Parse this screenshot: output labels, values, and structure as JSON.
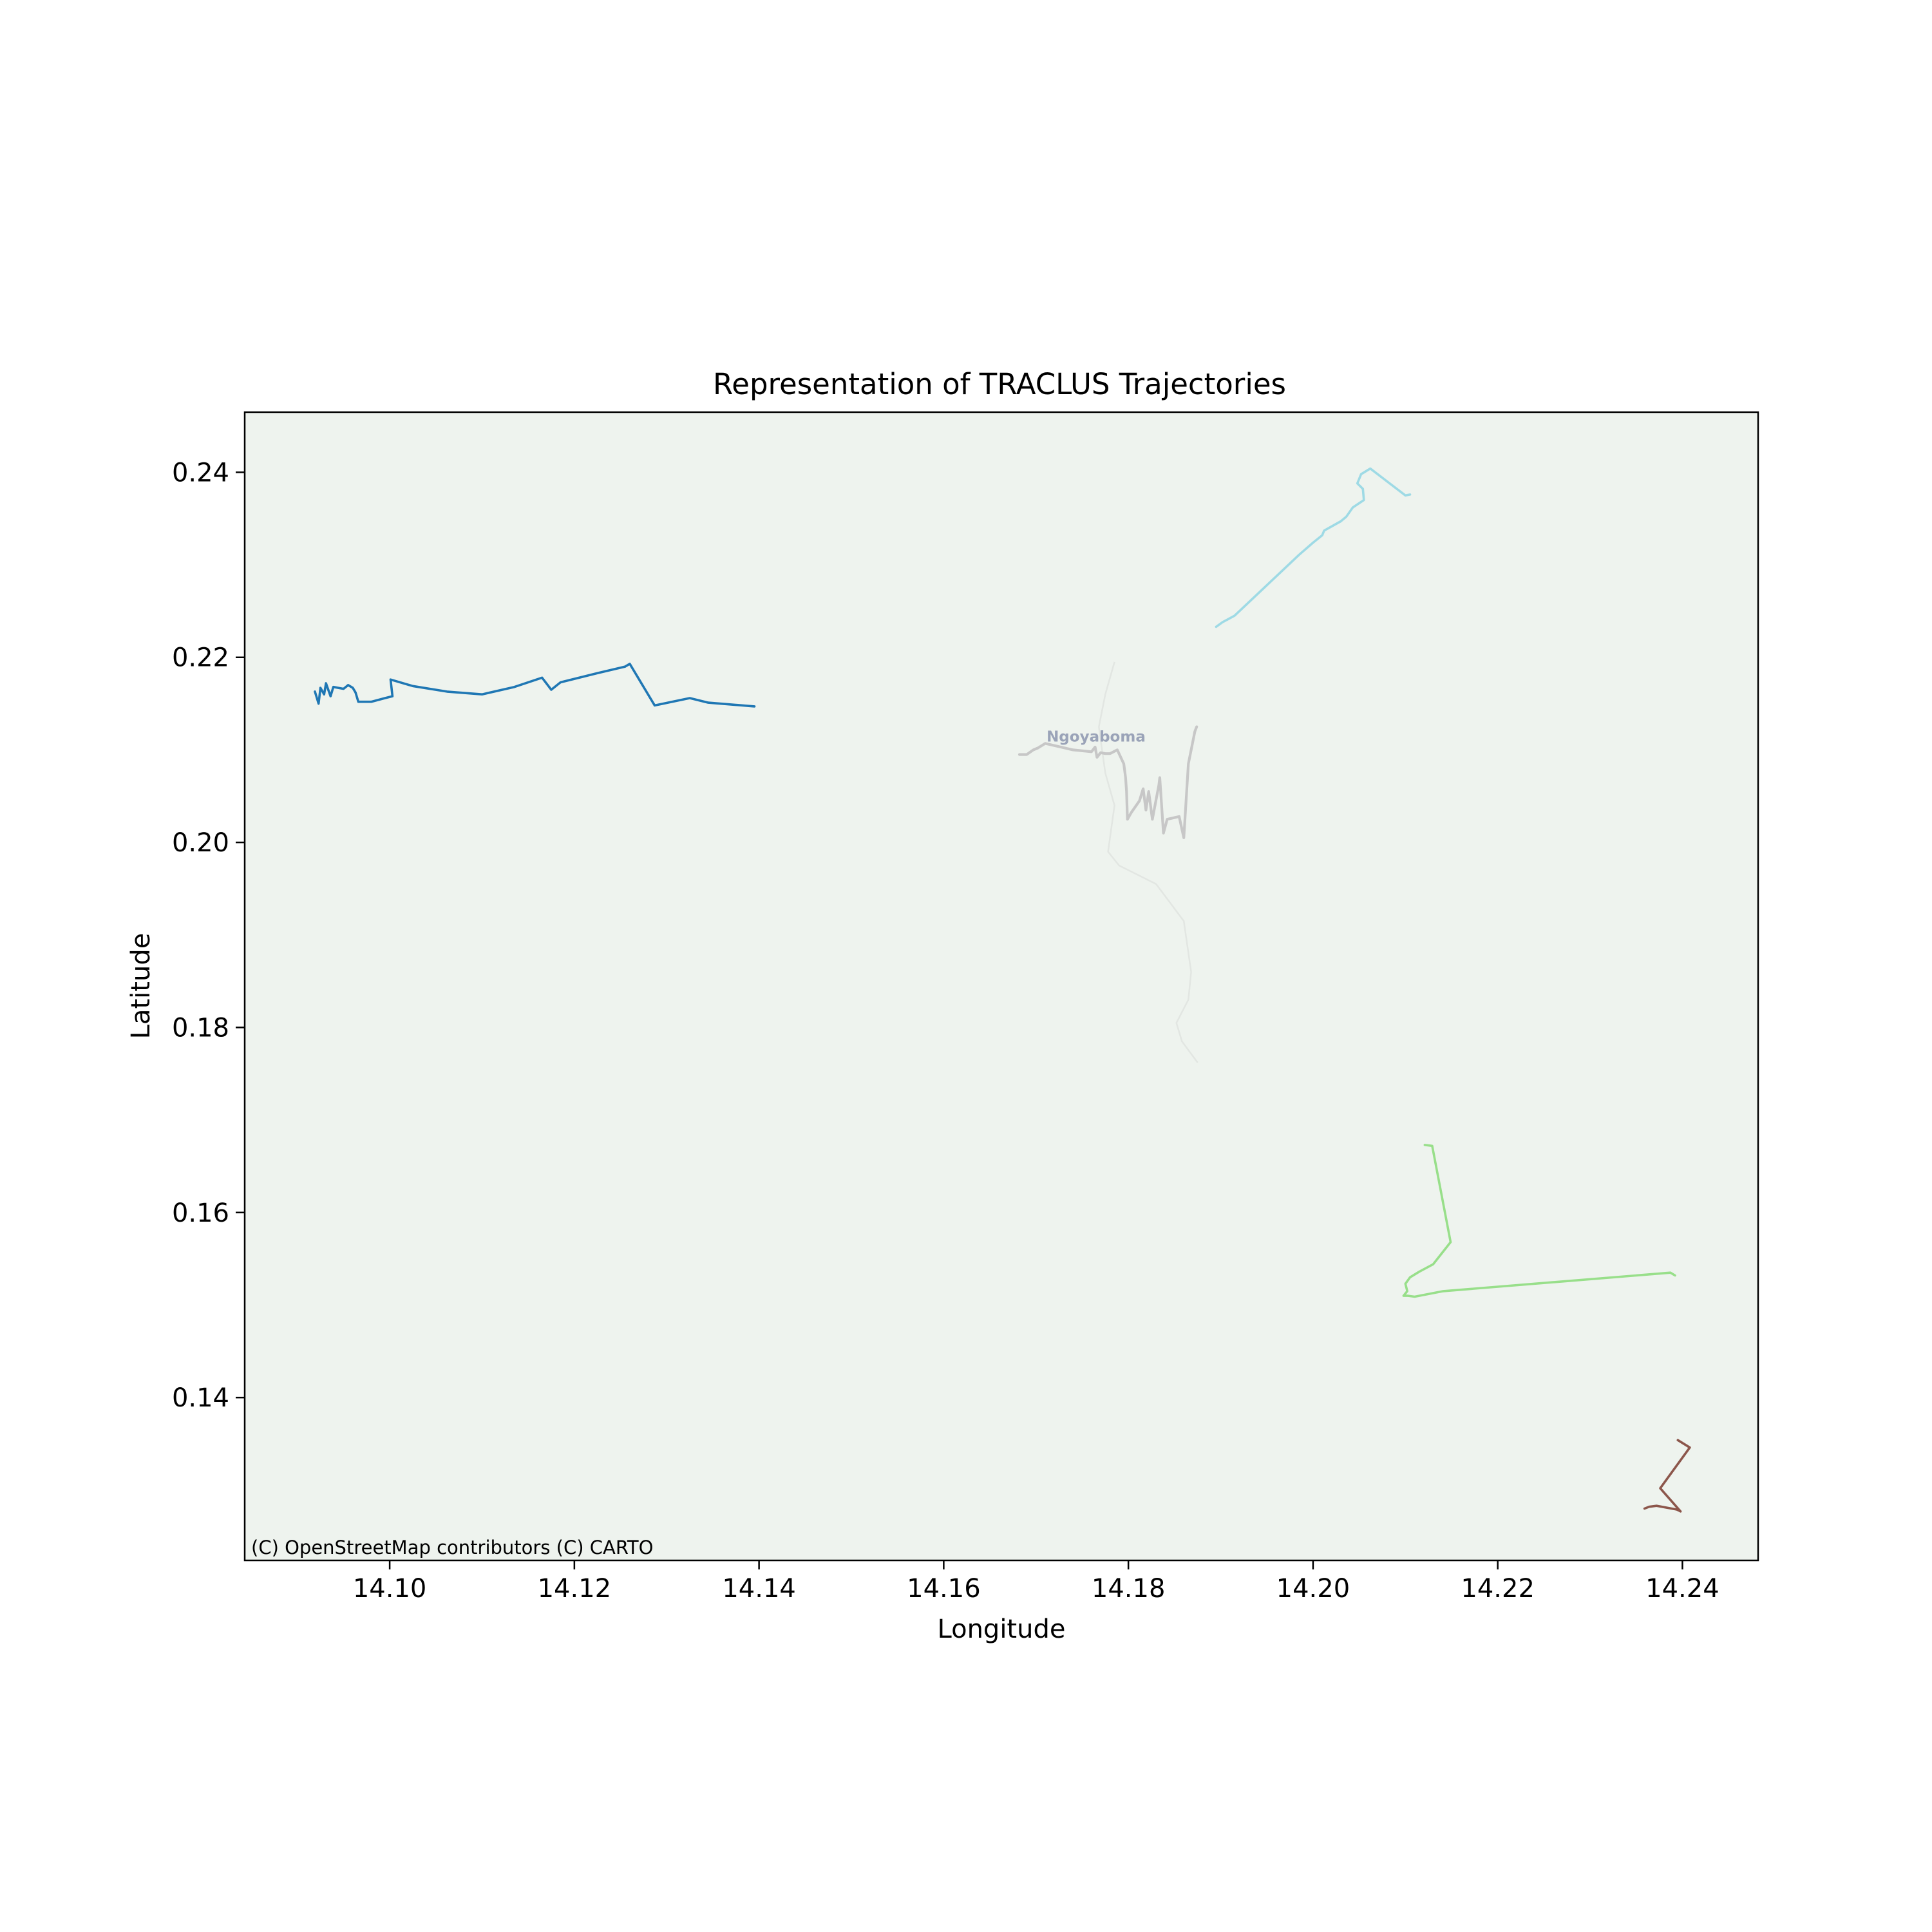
{
  "chart_data": {
    "type": "line",
    "title": "Representation of TRACLUS Trajectories",
    "xlabel": "Longitude",
    "ylabel": "Latitude",
    "xlim": [
      14.0843,
      14.2482
    ],
    "ylim": [
      0.1224,
      0.2465
    ],
    "xticks": [
      14.1,
      14.12,
      14.14,
      14.16,
      14.18,
      14.2,
      14.22,
      14.24
    ],
    "yticks": [
      0.14,
      0.16,
      0.18,
      0.2,
      0.22,
      0.24
    ],
    "grid": false,
    "legend": "none",
    "background": "#eef3ee",
    "basemap": {
      "attribution": "(C) OpenStreetMap contributors (C) CARTO",
      "place_label": {
        "text": "Ngoyaboma",
        "x": 14.1765,
        "y": 0.2109,
        "color": "#9aa3b8"
      },
      "road": {
        "color": "#e2e6e2",
        "points": [
          [
            14.1785,
            0.2195
          ],
          [
            14.1775,
            0.216
          ],
          [
            14.1768,
            0.2125
          ],
          [
            14.1775,
            0.2075
          ],
          [
            14.1785,
            0.204
          ],
          [
            14.1778,
            0.199
          ],
          [
            14.179,
            0.1975
          ],
          [
            14.183,
            0.1955
          ],
          [
            14.186,
            0.1915
          ],
          [
            14.1868,
            0.186
          ],
          [
            14.1865,
            0.183
          ],
          [
            14.1852,
            0.1805
          ],
          [
            14.1858,
            0.1785
          ],
          [
            14.1875,
            0.1762
          ]
        ]
      }
    },
    "series": [
      {
        "color": "#1f77b4",
        "points": [
          [
            14.0919,
            0.2163
          ],
          [
            14.0923,
            0.215
          ],
          [
            14.0925,
            0.2167
          ],
          [
            14.0929,
            0.216
          ],
          [
            14.0931,
            0.2172
          ],
          [
            14.0936,
            0.2158
          ],
          [
            14.0939,
            0.2168
          ],
          [
            14.095,
            0.2166
          ],
          [
            14.0955,
            0.217
          ],
          [
            14.096,
            0.2167
          ],
          [
            14.0963,
            0.2162
          ],
          [
            14.0966,
            0.2152
          ],
          [
            14.098,
            0.2152
          ],
          [
            14.0995,
            0.2156
          ],
          [
            14.1003,
            0.2158
          ],
          [
            14.1001,
            0.2176
          ],
          [
            14.1025,
            0.2169
          ],
          [
            14.1062,
            0.2163
          ],
          [
            14.11,
            0.216
          ],
          [
            14.1135,
            0.2168
          ],
          [
            14.1165,
            0.2178
          ],
          [
            14.1175,
            0.2165
          ],
          [
            14.1185,
            0.2173
          ],
          [
            14.1225,
            0.2183
          ],
          [
            14.1255,
            0.219
          ],
          [
            14.126,
            0.2193
          ],
          [
            14.1287,
            0.2148
          ],
          [
            14.1325,
            0.2156
          ],
          [
            14.1345,
            0.2151
          ],
          [
            14.1395,
            0.2147
          ]
        ],
        "width": 3.6
      },
      {
        "color": "#9edae5",
        "points": [
          [
            14.1895,
            0.2233
          ],
          [
            14.1902,
            0.2238
          ],
          [
            14.1915,
            0.2245
          ],
          [
            14.1985,
            0.2311
          ],
          [
            14.2,
            0.2324
          ],
          [
            14.201,
            0.2332
          ],
          [
            14.2012,
            0.2337
          ],
          [
            14.203,
            0.2347
          ],
          [
            14.2036,
            0.2352
          ],
          [
            14.2043,
            0.2362
          ],
          [
            14.2055,
            0.237
          ],
          [
            14.2054,
            0.2382
          ],
          [
            14.2048,
            0.2388
          ],
          [
            14.2052,
            0.2398
          ],
          [
            14.2062,
            0.2404
          ],
          [
            14.21,
            0.2375
          ],
          [
            14.2105,
            0.2376
          ]
        ],
        "width": 3.6
      },
      {
        "color": "#c7c7c7",
        "points": [
          [
            14.1682,
            0.2095
          ],
          [
            14.169,
            0.2095
          ],
          [
            14.1697,
            0.21
          ],
          [
            14.1702,
            0.2102
          ],
          [
            14.171,
            0.2107
          ],
          [
            14.174,
            0.21
          ],
          [
            14.176,
            0.2098
          ],
          [
            14.1764,
            0.2103
          ],
          [
            14.1766,
            0.2092
          ],
          [
            14.177,
            0.2097
          ],
          [
            14.1775,
            0.2096
          ],
          [
            14.178,
            0.2096
          ],
          [
            14.1788,
            0.21
          ],
          [
            14.1795,
            0.2085
          ],
          [
            14.1797,
            0.207
          ],
          [
            14.1798,
            0.2055
          ],
          [
            14.1799,
            0.2025
          ],
          [
            14.1803,
            0.2032
          ],
          [
            14.1812,
            0.2045
          ],
          [
            14.1816,
            0.2058
          ],
          [
            14.1819,
            0.2035
          ],
          [
            14.1822,
            0.2055
          ],
          [
            14.1826,
            0.2025
          ],
          [
            14.1833,
            0.2062
          ],
          [
            14.1834,
            0.207
          ],
          [
            14.1838,
            0.201
          ],
          [
            14.1842,
            0.2025
          ],
          [
            14.1855,
            0.2028
          ],
          [
            14.186,
            0.2005
          ],
          [
            14.1865,
            0.2085
          ],
          [
            14.1872,
            0.212
          ],
          [
            14.1874,
            0.2125
          ]
        ],
        "width": 4.2
      },
      {
        "color": "#98df8a",
        "points": [
          [
            14.2121,
            0.1673
          ],
          [
            14.2129,
            0.1672
          ],
          [
            14.2149,
            0.1568
          ],
          [
            14.213,
            0.1544
          ],
          [
            14.2115,
            0.1536
          ],
          [
            14.2105,
            0.153
          ],
          [
            14.21,
            0.1523
          ],
          [
            14.2102,
            0.1515
          ],
          [
            14.2098,
            0.151
          ],
          [
            14.2103,
            0.151
          ],
          [
            14.211,
            0.1509
          ],
          [
            14.2141,
            0.1515
          ],
          [
            14.2387,
            0.1535
          ],
          [
            14.2392,
            0.1532
          ]
        ],
        "width": 3.6
      },
      {
        "color": "#8c564b",
        "points": [
          [
            14.2359,
            0.128
          ],
          [
            14.2364,
            0.1282
          ],
          [
            14.2372,
            0.1283
          ],
          [
            14.2394,
            0.1279
          ],
          [
            14.2398,
            0.1277
          ],
          [
            14.2376,
            0.1302
          ],
          [
            14.2408,
            0.1346
          ],
          [
            14.2395,
            0.1354
          ]
        ],
        "width": 3.6
      }
    ]
  }
}
